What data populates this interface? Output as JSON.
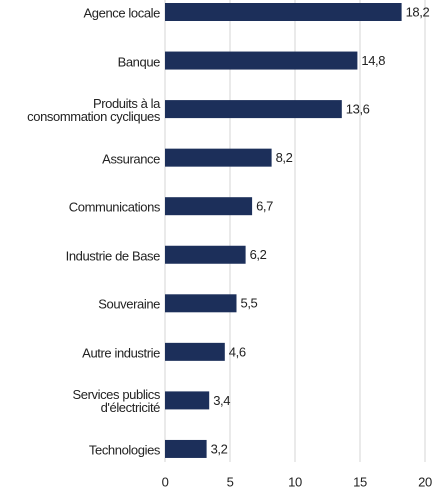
{
  "chart_data": {
    "type": "bar",
    "orientation": "horizontal",
    "categories": [
      "Agence locale",
      "Banque",
      "Produits à la\nconsommation cycliques",
      "Assurance",
      "Communications",
      "Industrie de Base",
      "Souveraine",
      "Autre industrie",
      "Services publics\nd'électricité",
      "Technologies"
    ],
    "values": [
      18.2,
      14.8,
      13.6,
      8.2,
      6.7,
      6.2,
      5.5,
      4.6,
      3.4,
      3.2
    ],
    "value_labels": [
      "18,2",
      "14,8",
      "13,6",
      "8,2",
      "6,7",
      "6,2",
      "5,5",
      "4,6",
      "3,4",
      "3,2"
    ],
    "color": "#1c2f5a",
    "xlim": [
      0,
      20
    ],
    "xticks": [
      0,
      5,
      10,
      15,
      20
    ],
    "grid": true
  }
}
